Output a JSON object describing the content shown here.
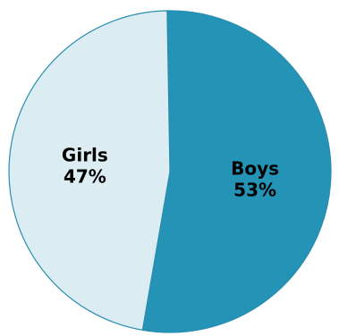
{
  "chart_data": {
    "type": "pie",
    "title": "",
    "slices": [
      {
        "label": "Boys",
        "value": 53,
        "value_label": "53%",
        "color": "#2493b5"
      },
      {
        "label": "Girls",
        "value": 47,
        "value_label": "47%",
        "color": "#dbecf3"
      }
    ],
    "start_angle_deg": -1,
    "direction": "clockwise",
    "outline_color": "#2a8db0",
    "legend": "none",
    "data_labels": "inside"
  }
}
